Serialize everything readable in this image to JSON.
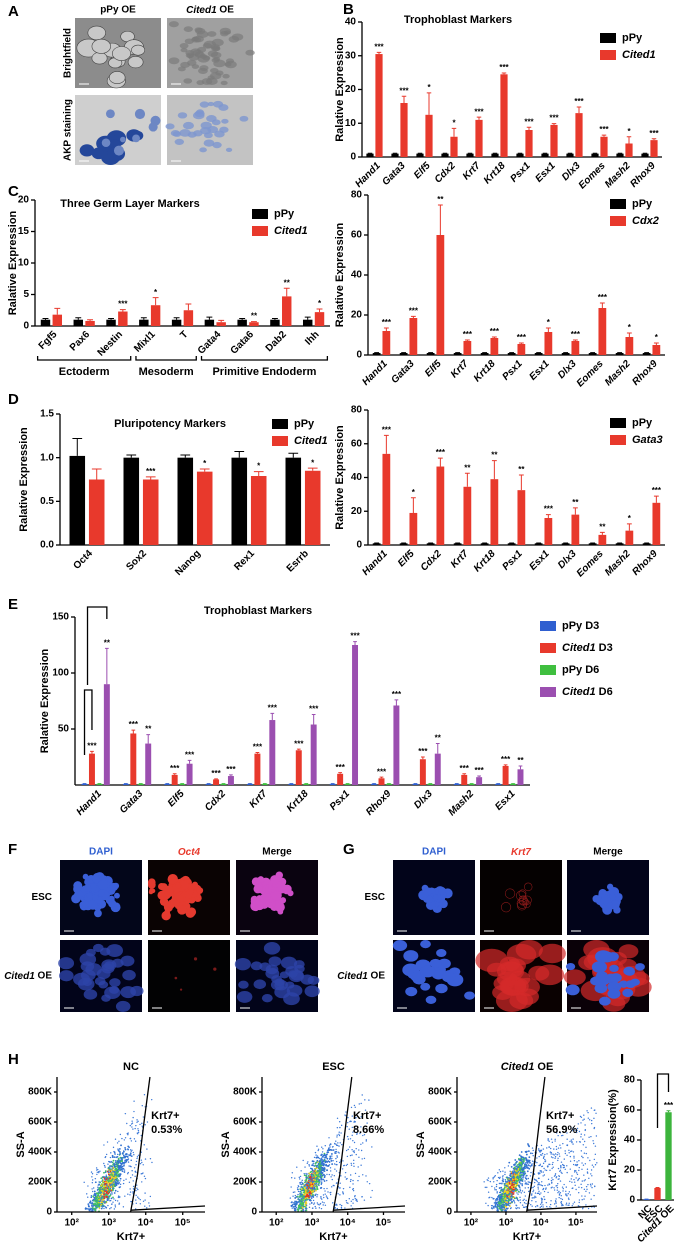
{
  "figures": {
    "panel_letters": [
      "A",
      "B",
      "C",
      "D",
      "E",
      "F",
      "G",
      "H",
      "I"
    ],
    "A": {
      "columns": [
        "pPy OE",
        "Cited1 OE"
      ],
      "rows": [
        "Brightfield",
        "AKP staining"
      ]
    },
    "F": {
      "columns": [
        "DAPI",
        "Oct4",
        "Merge"
      ],
      "rows": [
        "ESC",
        "Cited1 OE"
      ]
    },
    "G": {
      "columns": [
        "DAPI",
        "Krt7",
        "Merge"
      ],
      "rows": [
        "ESC",
        "Cited1 OE"
      ]
    }
  },
  "chart_data": [
    {
      "type": "bar",
      "title": "Trophoblast Markers",
      "y_label": "Ralative Expression",
      "categories": [
        "Hand1",
        "Gata3",
        "Elf5",
        "Cdx2",
        "Krt7",
        "Krt18",
        "Psx1",
        "Esx1",
        "Dlx3",
        "Eomes",
        "Mash2",
        "Rhox9"
      ],
      "series": [
        {
          "name": "pPy",
          "color": "#000000",
          "values": [
            1,
            1,
            1,
            1,
            1,
            1,
            1,
            1,
            1,
            1,
            1,
            1
          ],
          "errors": [
            0.1,
            0.1,
            0.1,
            0.1,
            0.1,
            0.1,
            0.1,
            0.1,
            0.1,
            0.1,
            0.1,
            0.1
          ]
        },
        {
          "name": "Cited1",
          "color": "#e8392c",
          "values": [
            30.5,
            16,
            12.5,
            6,
            11,
            24.5,
            8,
            9.5,
            13,
            6,
            4,
            5
          ],
          "errors": [
            0.5,
            2,
            6.5,
            2.5,
            0.8,
            0.4,
            0.8,
            0.4,
            1.8,
            0.5,
            2,
            0.4
          ],
          "significance": [
            "***",
            "***",
            "*",
            "*",
            "***",
            "***",
            "***",
            "***",
            "***",
            "***",
            "*",
            "***"
          ]
        }
      ],
      "ylim": [
        0,
        40
      ],
      "yticks": [
        0,
        10,
        20,
        30,
        40
      ],
      "legend": "upper right"
    },
    {
      "type": "bar",
      "title": "Three Germ Layer Markers",
      "y_label": "Ralative Expression",
      "categories": [
        "Fgf5",
        "Pax6",
        "Nestin",
        "Mixl1",
        "T",
        "Gata4",
        "Gata6",
        "Dab2",
        "Ihh"
      ],
      "group_labels": [
        "Ectoderm",
        "Mesoderm",
        "Primitive Endoderm"
      ],
      "series": [
        {
          "name": "pPy",
          "color": "#000000",
          "values": [
            1,
            1,
            1,
            1,
            1,
            1,
            1,
            1,
            1
          ],
          "errors": [
            0.2,
            0.3,
            0.2,
            0.3,
            0.3,
            0.4,
            0.2,
            0.2,
            0.4
          ]
        },
        {
          "name": "Cited1",
          "color": "#e8392c",
          "values": [
            1.8,
            0.8,
            2.3,
            3.3,
            2.5,
            0.6,
            0.6,
            4.7,
            2.2
          ],
          "errors": [
            1,
            0.2,
            0.3,
            1.2,
            1,
            0.3,
            0.1,
            1.3,
            0.5
          ],
          "significance": [
            null,
            null,
            "***",
            "*",
            null,
            null,
            "**",
            "**",
            "*"
          ]
        }
      ],
      "ylim": [
        0,
        20
      ],
      "yticks": [
        0,
        5,
        10,
        15,
        20
      ],
      "legend": "upper right"
    },
    {
      "type": "bar",
      "y_label": "Ralative Expression",
      "categories": [
        "Hand1",
        "Gata3",
        "Elf5",
        "Krt7",
        "Krt18",
        "Psx1",
        "Esx1",
        "Dlx3",
        "Eomes",
        "Mash2",
        "Rhox9"
      ],
      "series": [
        {
          "name": "pPy",
          "color": "#000000",
          "values": [
            1,
            1,
            1,
            1,
            1,
            1,
            1,
            1,
            1,
            1,
            1
          ],
          "errors": [
            0.2,
            0.2,
            0.2,
            0.2,
            0.2,
            0.2,
            0.2,
            0.2,
            0.2,
            0.2,
            0.2
          ]
        },
        {
          "name": "Cdx2",
          "color": "#e8392c",
          "values": [
            12,
            18.5,
            60,
            7,
            8.5,
            5.5,
            11.5,
            7,
            23.5,
            9,
            5
          ],
          "errors": [
            1.5,
            0.8,
            15,
            0.5,
            0.5,
            0.5,
            2,
            0.5,
            2.5,
            2,
            1
          ],
          "significance": [
            "***",
            "***",
            "**",
            "***",
            "***",
            "***",
            "*",
            "***",
            "***",
            "*",
            "*"
          ]
        }
      ],
      "ylim": [
        0,
        80
      ],
      "yticks": [
        0,
        20,
        40,
        60,
        80
      ],
      "legend": "upper right"
    },
    {
      "type": "bar",
      "title": "Pluripotency Markers",
      "y_label": "Ralative Expression",
      "categories": [
        "Oct4",
        "Sox2",
        "Nanog",
        "Rex1",
        "Esrrb"
      ],
      "series": [
        {
          "name": "pPy",
          "color": "#000000",
          "values": [
            1.02,
            1,
            1,
            1,
            1
          ],
          "errors": [
            0.2,
            0.03,
            0.03,
            0.07,
            0.05
          ]
        },
        {
          "name": "Cited1",
          "color": "#e8392c",
          "values": [
            0.75,
            0.75,
            0.84,
            0.79,
            0.85
          ],
          "errors": [
            0.12,
            0.03,
            0.03,
            0.05,
            0.03
          ],
          "significance": [
            null,
            "***",
            "*",
            "*",
            "*"
          ]
        }
      ],
      "ylim": [
        0,
        1.5
      ],
      "yticks": [
        {
          "value": 0,
          "label": "0.0"
        },
        0.5,
        {
          "value": 1,
          "label": "1.0"
        },
        1.5
      ],
      "legend": "upper right"
    },
    {
      "type": "bar",
      "y_label": "Ralative Expression",
      "categories": [
        "Hand1",
        "Elf5",
        "Cdx2",
        "Krt7",
        "Krt18",
        "Psx1",
        "Esx1",
        "Dlx3",
        "Eomes",
        "Mash2",
        "Rhox9"
      ],
      "series": [
        {
          "name": "pPy",
          "color": "#000000",
          "values": [
            1,
            1,
            1,
            1,
            1,
            1,
            1,
            1,
            1,
            1,
            1
          ],
          "errors": [
            0.2,
            0.2,
            0.2,
            0.2,
            0.2,
            0.2,
            0.2,
            0.2,
            0.2,
            0.2,
            0.2
          ]
        },
        {
          "name": "Gata3",
          "color": "#e8392c",
          "values": [
            54,
            19,
            46.5,
            34.5,
            39,
            32.5,
            16,
            18,
            6,
            8.5,
            25
          ],
          "errors": [
            11,
            9,
            5,
            8,
            11,
            9,
            2,
            4,
            1.5,
            4,
            4
          ],
          "significance": [
            "***",
            "*",
            "***",
            "**",
            "**",
            "**",
            "***",
            "**",
            "**",
            "*",
            "***"
          ]
        }
      ],
      "ylim": [
        0,
        80
      ],
      "yticks": [
        0,
        20,
        40,
        60,
        80
      ],
      "legend": "upper right"
    },
    {
      "type": "bar",
      "title": "Trophoblast Markers",
      "y_label": "Ralative Expression",
      "categories": [
        "Hand1",
        "Gata3",
        "Elf5",
        "Cdx2",
        "Krt7",
        "Krt18",
        "Psx1",
        "Rhox9",
        "Dlx3",
        "Mash2",
        "Esx1"
      ],
      "series": [
        {
          "name": "pPy D3",
          "color": "#2f5fd0",
          "values": [
            1,
            1,
            1,
            1,
            1,
            1,
            1,
            1,
            1,
            1,
            1
          ],
          "errors": [
            0.2,
            0.2,
            0.2,
            0.2,
            0.2,
            0.2,
            0.2,
            0.2,
            0.2,
            0.2,
            0.2
          ]
        },
        {
          "name": "Cited1 D3",
          "color": "#e8392c",
          "values": [
            28,
            46,
            9,
            5,
            28,
            31,
            10,
            6,
            23,
            9,
            17
          ],
          "errors": [
            2,
            3,
            1,
            0.5,
            1,
            1,
            1,
            1,
            2,
            1,
            1
          ],
          "significance": [
            "***",
            "***",
            "***",
            "***",
            "***",
            "***",
            "***",
            "***",
            "***",
            "***",
            "***"
          ]
        },
        {
          "name": "pPy D6",
          "color": "#3fbf3f",
          "values": [
            1,
            1,
            1,
            1,
            1,
            1,
            1,
            1,
            1,
            1,
            1
          ],
          "errors": [
            0.2,
            0.2,
            0.2,
            0.2,
            0.2,
            0.2,
            0.2,
            0.2,
            0.2,
            0.2,
            0.2
          ]
        },
        {
          "name": "Cited1 D6",
          "color": "#9b4fb0",
          "values": [
            90,
            37,
            19,
            8,
            58,
            54,
            125,
            71,
            28,
            7,
            14
          ],
          "errors": [
            32,
            8,
            3,
            1,
            6,
            9,
            3,
            5,
            9,
            1,
            3
          ],
          "significance": [
            "**",
            "**",
            "***",
            "***",
            "***",
            "***",
            "***",
            "***",
            "**",
            "***",
            "**"
          ]
        }
      ],
      "ylim": [
        0,
        150
      ],
      "yticks": [
        50,
        100,
        150
      ],
      "legend": "upper right"
    },
    {
      "type": "flow",
      "title": "NC",
      "x_label": "Krt7+",
      "y_label": "SS-A",
      "xscale": "log",
      "xlim": [
        40,
        400000
      ],
      "xticks": [
        {
          "value": 100,
          "label": "10²"
        },
        {
          "value": 1000,
          "label": "10³"
        },
        {
          "value": 10000,
          "label": "10⁴"
        },
        {
          "value": 100000,
          "label": "10⁵"
        }
      ],
      "ylim": [
        0,
        900000
      ],
      "yticks": [
        0,
        {
          "value": 200000,
          "label": "200K"
        },
        {
          "value": 400000,
          "label": "400K"
        },
        {
          "value": 600000,
          "label": "600K"
        },
        {
          "value": 800000,
          "label": "800K"
        }
      ],
      "annotations": [
        "Krt7+",
        "0.53%"
      ]
    },
    {
      "type": "flow",
      "title": "ESC",
      "x_label": "Krt7+",
      "y_label": "SS-A",
      "xscale": "log",
      "xlim": [
        40,
        400000
      ],
      "xticks": [
        {
          "value": 100,
          "label": "10²"
        },
        {
          "value": 1000,
          "label": "10³"
        },
        {
          "value": 10000,
          "label": "10⁴"
        },
        {
          "value": 100000,
          "label": "10⁵"
        }
      ],
      "ylim": [
        0,
        900000
      ],
      "yticks": [
        0,
        {
          "value": 200000,
          "label": "200K"
        },
        {
          "value": 400000,
          "label": "400K"
        },
        {
          "value": 600000,
          "label": "600K"
        },
        {
          "value": 800000,
          "label": "800K"
        }
      ],
      "annotations": [
        "Krt7+",
        "8.66%"
      ]
    },
    {
      "type": "flow",
      "title": "Cited1 OE",
      "x_label": "Krt7+",
      "y_label": "SS-A",
      "xscale": "log",
      "xlim": [
        40,
        400000
      ],
      "xticks": [
        {
          "value": 100,
          "label": "10²"
        },
        {
          "value": 1000,
          "label": "10³"
        },
        {
          "value": 10000,
          "label": "10⁴"
        },
        {
          "value": 100000,
          "label": "10⁵"
        }
      ],
      "ylim": [
        0,
        900000
      ],
      "yticks": [
        0,
        {
          "value": 200000,
          "label": "200K"
        },
        {
          "value": 400000,
          "label": "400K"
        },
        {
          "value": 600000,
          "label": "600K"
        },
        {
          "value": 800000,
          "label": "800K"
        }
      ],
      "annotations": [
        "Krt7+",
        "56.9%"
      ]
    },
    {
      "type": "bar",
      "y_label": "Krt7 Expression(%)",
      "categories": [
        "NC",
        "ESC",
        "Cited1 OE"
      ],
      "values": [
        0.5,
        8,
        58.5
      ],
      "errors": [
        0.1,
        0.3,
        1
      ],
      "colors": [
        "#2f5fd0",
        "#e8392c",
        "#3cb43c"
      ],
      "significance": [
        null,
        null,
        "***"
      ],
      "ylim": [
        0,
        80
      ],
      "yticks": [
        0,
        20,
        40,
        60,
        80
      ]
    }
  ]
}
